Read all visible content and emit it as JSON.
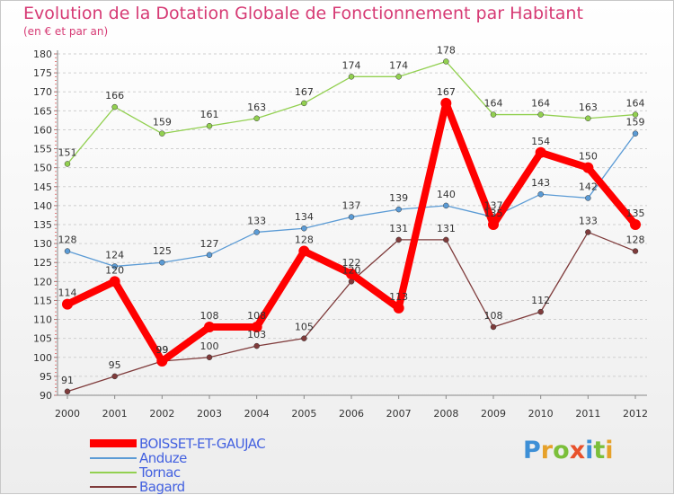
{
  "header": {
    "title": "Evolution de la Dotation Globale de Fonctionnement par Habitant",
    "subtitle": "(en € et par an)"
  },
  "brand": {
    "letters": [
      "P",
      "r",
      "o",
      "x",
      "i",
      "t",
      "i"
    ],
    "colors": [
      "#3d8fd6",
      "#e6a12a",
      "#7bbf3a",
      "#e8512b",
      "#3d8fd6",
      "#7bbf3a",
      "#e6a12a"
    ]
  },
  "chart_data": {
    "type": "line",
    "title": "Evolution de la Dotation Globale de Fonctionnement par Habitant",
    "subtitle": "(en € et par an)",
    "xlabel": "",
    "ylabel": "",
    "categories": [
      "2000",
      "2001",
      "2002",
      "2003",
      "2004",
      "2005",
      "2006",
      "2007",
      "2008",
      "2009",
      "2010",
      "2011",
      "2012"
    ],
    "ylim": [
      90,
      180
    ],
    "yticks": [
      90,
      95,
      100,
      105,
      110,
      115,
      120,
      125,
      130,
      135,
      140,
      145,
      150,
      155,
      160,
      165,
      170,
      175,
      180
    ],
    "grid": "horizontal dashed",
    "legend": "bottom-left",
    "series": [
      {
        "name": "BOISSET-ET-GAUJAC",
        "color": "#ff0000",
        "emphasis": true,
        "values": [
          114,
          120,
          99,
          108,
          108,
          128,
          122,
          113,
          167,
          135,
          154,
          150,
          135
        ]
      },
      {
        "name": "Anduze",
        "color": "#5b9bd5",
        "values": [
          128,
          124,
          125,
          127,
          133,
          134,
          137,
          139,
          140,
          137,
          143,
          142,
          159
        ]
      },
      {
        "name": "Tornac",
        "color": "#92d050",
        "values": [
          151,
          166,
          159,
          161,
          163,
          167,
          174,
          174,
          178,
          164,
          164,
          163,
          164
        ]
      },
      {
        "name": "Bagard",
        "color": "#7f3b3b",
        "values": [
          91,
          95,
          99,
          100,
          103,
          105,
          120,
          131,
          131,
          108,
          112,
          133,
          128
        ]
      }
    ]
  }
}
